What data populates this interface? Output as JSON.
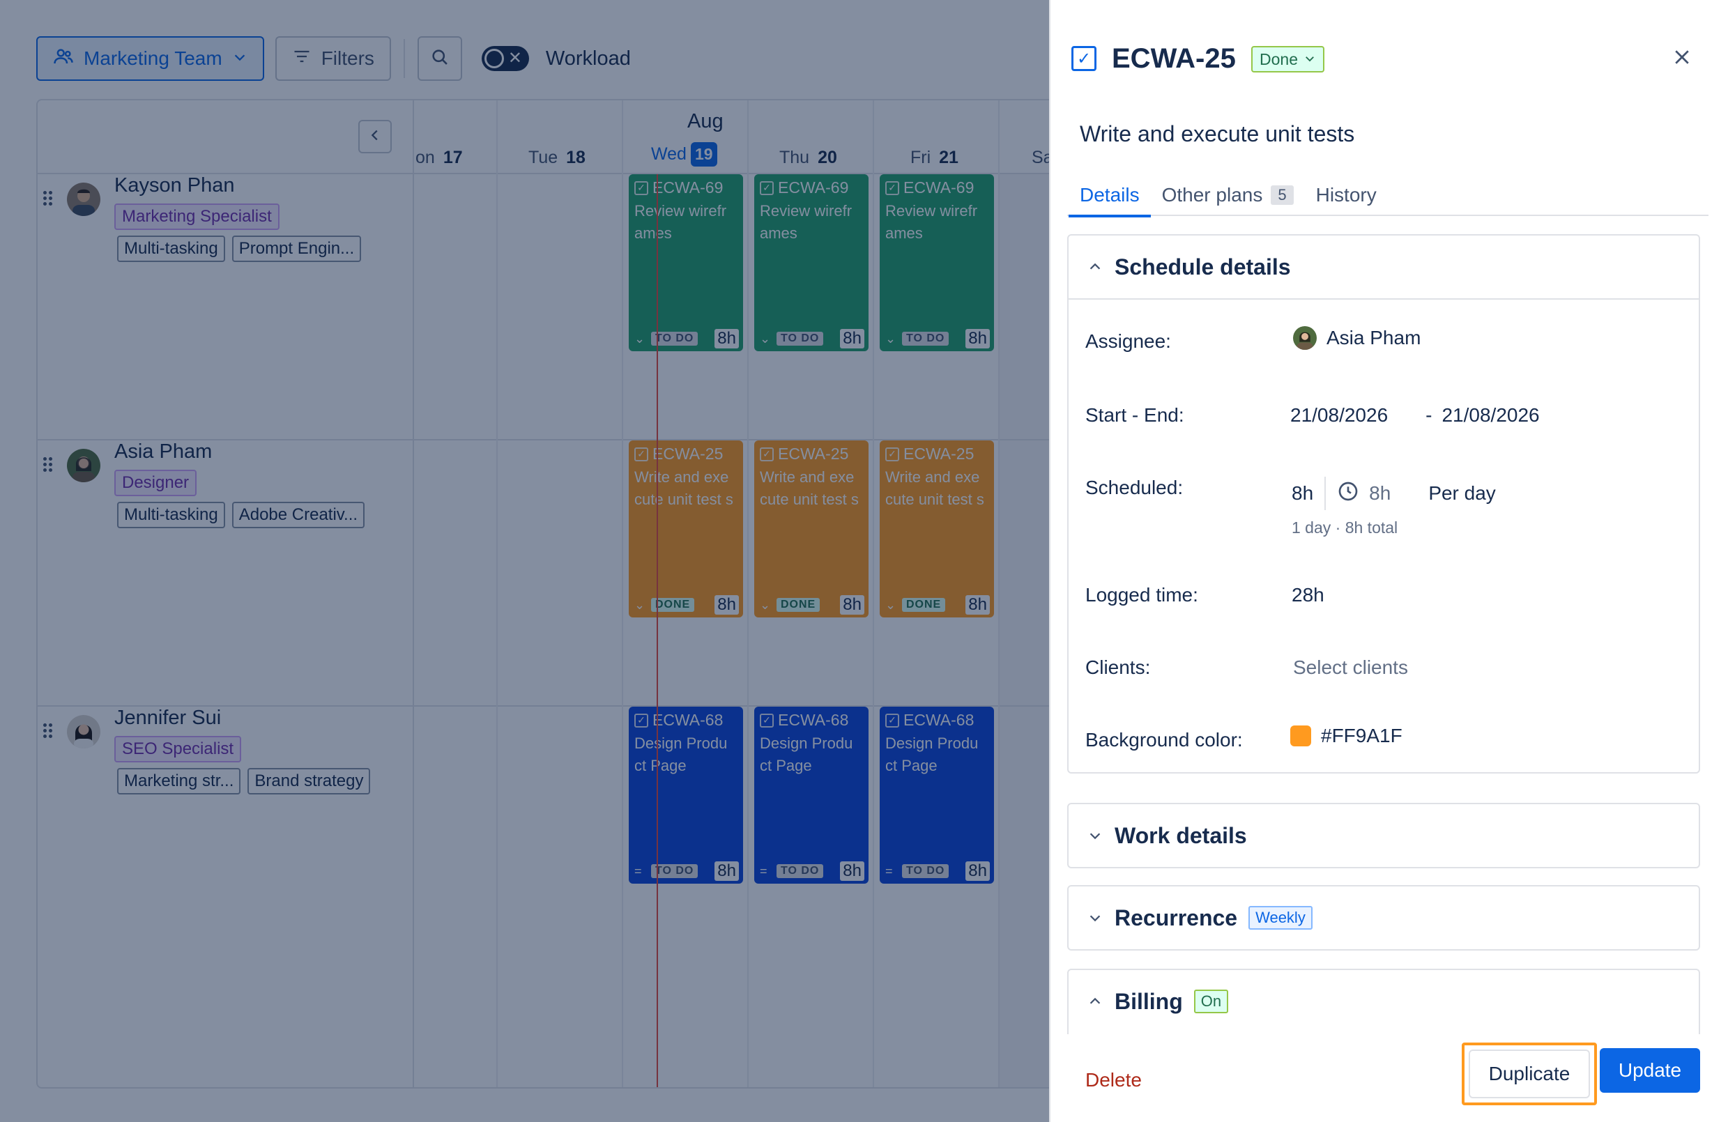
{
  "toolbar": {
    "team_label": "Marketing Team",
    "filters_label": "Filters",
    "workload_label": "Workload"
  },
  "calendar": {
    "month": "Aug",
    "days": [
      {
        "name": "on",
        "num": "17"
      },
      {
        "name": "Tue",
        "num": "18"
      },
      {
        "name": "Wed",
        "num": "19"
      },
      {
        "name": "Thu",
        "num": "20"
      },
      {
        "name": "Fri",
        "num": "21"
      },
      {
        "name": "Sa",
        "num": ""
      }
    ]
  },
  "people": [
    {
      "name": "Kayson Phan",
      "role": "Marketing Specialist",
      "tags": [
        "Multi-tasking",
        "Prompt Engin..."
      ],
      "task": {
        "key": "ECWA-69",
        "title": "Review wirefr ames",
        "status": "TO DO",
        "hours": "8h",
        "color": "#22a06b"
      }
    },
    {
      "name": "Asia Pham",
      "role": "Designer",
      "tags": [
        "Multi-tasking",
        "Adobe Creativ..."
      ],
      "task": {
        "key": "ECWA-25",
        "title": "Write and exe cute unit test s",
        "status": "DONE",
        "hours": "8h",
        "color": "#ff9a1f"
      }
    },
    {
      "name": "Jennifer Sui",
      "role": "SEO Specialist",
      "tags": [
        "Marketing str...",
        "Brand strategy"
      ],
      "task": {
        "key": "ECWA-68",
        "title": "Design Produ ct Page",
        "status": "TO DO",
        "hours": "8h",
        "color": "#0c45d8"
      }
    }
  ],
  "panel": {
    "key": "ECWA-25",
    "status": "Done",
    "title": "Write and execute unit tests",
    "tabs": {
      "details": "Details",
      "other_plans": "Other plans",
      "other_plans_count": "5",
      "history": "History"
    },
    "schedule": {
      "heading": "Schedule details",
      "assignee_label": "Assignee:",
      "assignee": "Asia Pham",
      "start_end_label": "Start - End:",
      "start": "21/08/2026",
      "end": "21/08/2026",
      "scheduled_label": "Scheduled:",
      "scheduled_hours": "8h",
      "scheduled_clock_hours": "8h",
      "scheduled_unit": "Per day",
      "scheduled_summary": "1 day · 8h total",
      "logged_label": "Logged time:",
      "logged": "28h",
      "clients_label": "Clients:",
      "clients_placeholder": "Select clients",
      "bg_label": "Background color:",
      "bg_value": "#FF9A1F"
    },
    "work_details": "Work details",
    "recurrence": "Recurrence",
    "recurrence_badge": "Weekly",
    "billing": "Billing",
    "billing_badge": "On",
    "footer": {
      "delete": "Delete",
      "duplicate": "Duplicate",
      "update": "Update"
    }
  }
}
